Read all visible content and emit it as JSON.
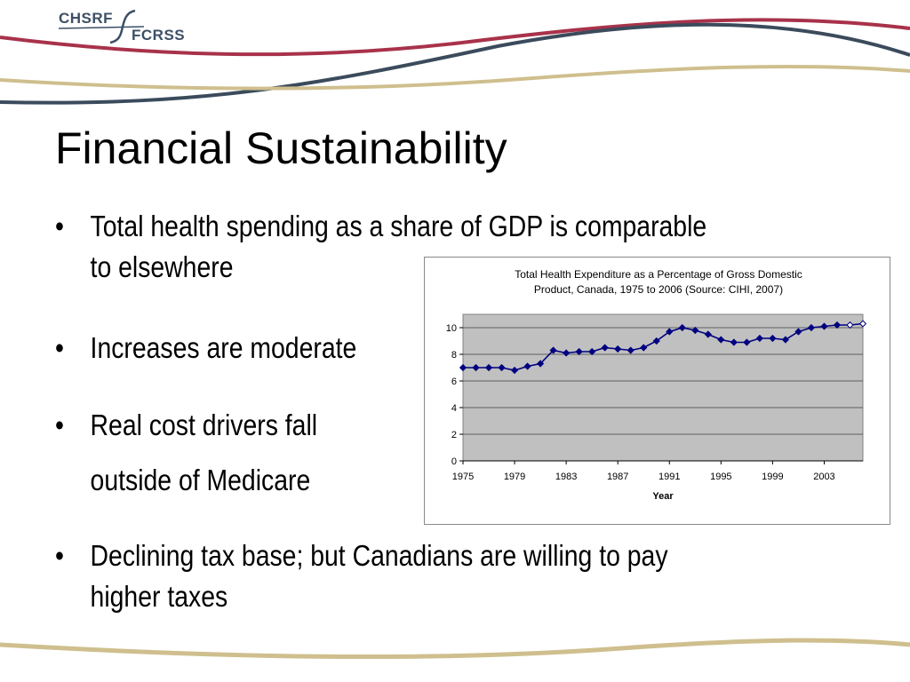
{
  "logo": {
    "top_text": "CHSRF",
    "bottom_text": "FCRSS"
  },
  "title": "Financial Sustainability",
  "bullets": [
    {
      "text_line1": "Total health spending as a share of GDP is comparable",
      "text_line2": "to elsewhere"
    },
    {
      "text_line1": "Increases are moderate"
    },
    {
      "text_line1": "Real cost drivers fall",
      "text_line2": "outside of Medicare"
    },
    {
      "text_line1": "Declining tax base; but Canadians are willing to pay",
      "text_line2": "higher taxes"
    }
  ],
  "bullet_symbol": "•",
  "colors": {
    "logo": "#3d4f66",
    "swoosh_red": "#a8324a",
    "swoosh_slate": "#3b4b5c",
    "swoosh_tan": "#cfbf8e",
    "plot_bg": "#c0c0c0",
    "series": "#000080"
  },
  "chart_data": {
    "type": "line",
    "title_line1": "Total Health Expenditure as a Percentage of Gross Domestic",
    "title_line2": "Product, Canada, 1975 to 2006 (Source: CIHI, 2007)",
    "xlabel": "Year",
    "ylabel": "",
    "x_ticks": [
      "1975",
      "1979",
      "1983",
      "1987",
      "1991",
      "1995",
      "1999",
      "2003"
    ],
    "y_ticks": [
      "0",
      "2",
      "4",
      "6",
      "8",
      "10"
    ],
    "xlim": [
      1975,
      2006
    ],
    "ylim": [
      0,
      11
    ],
    "grid": true,
    "legend": "none",
    "series": [
      {
        "x": [
          1975,
          1976,
          1977,
          1978,
          1979,
          1980,
          1981,
          1982,
          1983,
          1984,
          1985,
          1986,
          1987,
          1988,
          1989,
          1990,
          1991,
          1992,
          1993,
          1994,
          1995,
          1996,
          1997,
          1998,
          1999,
          2000,
          2001,
          2002,
          2003,
          2004,
          2005,
          2006
        ],
        "values": [
          7.0,
          7.0,
          7.0,
          7.0,
          6.8,
          7.1,
          7.3,
          8.3,
          8.1,
          8.2,
          8.2,
          8.5,
          8.4,
          8.3,
          8.5,
          9.0,
          9.7,
          10.0,
          9.8,
          9.5,
          9.1,
          8.9,
          8.9,
          9.2,
          9.2,
          9.1,
          9.7,
          10.0,
          10.1,
          10.2,
          10.2,
          10.3
        ],
        "forecast_from": 2005
      }
    ]
  }
}
